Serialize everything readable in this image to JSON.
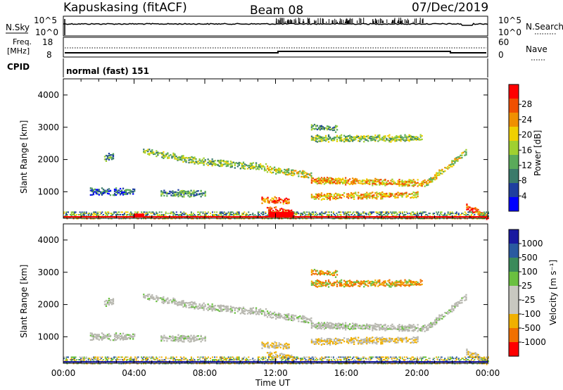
{
  "header": {
    "station": "Kapuskasing (fitACF)",
    "beam": "Beam 08",
    "date": "07/Dec/2019"
  },
  "top_panel": {
    "left_label": "N.Sky",
    "right_label": "N.Search",
    "left_ticks": [
      "10^5",
      "10^0"
    ],
    "right_ticks": [
      "10^5",
      "10^0"
    ]
  },
  "freq_panel": {
    "left_label_1": "Freq.",
    "left_label_2": "[MHz]",
    "right_label": "Nave",
    "left_ticks": [
      "18",
      "8"
    ],
    "right_ticks": [
      "60",
      "0"
    ],
    "freq_level": 10.0
  },
  "cpid_panel": {
    "label": "CPID",
    "text": "normal (fast) 151"
  },
  "colors": {
    "power": [
      "#0000ff",
      "#1f3f9f",
      "#3a7a6a",
      "#5aaa5a",
      "#9fd030",
      "#f0d000",
      "#f09000",
      "#f05000",
      "#ff0000"
    ],
    "velocity": [
      "#1a1aa0",
      "#2a5aa0",
      "#3a8a5a",
      "#6ac040",
      "#c8c8c0",
      "#c8c8c0",
      "#f0b000",
      "#f07000",
      "#ff0000"
    ],
    "ground": "#b8b8b0"
  },
  "chart_data": [
    {
      "type": "heatmap",
      "id": "power",
      "ylabel": "Slant Range [km]",
      "xlabel": "",
      "colorbar_label": "Power [dB]",
      "colorbar_ticks": [
        "4",
        "8",
        "12",
        "16",
        "20",
        "24",
        "28"
      ],
      "y_ticks": [
        "1000",
        "2000",
        "3000",
        "4000"
      ],
      "x_ticks": [],
      "xlim": [
        0,
        24
      ],
      "ylim": [
        180,
        4500
      ]
    },
    {
      "type": "heatmap",
      "id": "velocity",
      "ylabel": "Slant Range [km]",
      "xlabel": "Time UT",
      "colorbar_label": "Velocity [m s⁻¹]",
      "colorbar_ticks": [
        "1000",
        "500",
        "100",
        "25",
        "-25",
        "-100",
        "-500",
        "-1000"
      ],
      "y_ticks": [
        "1000",
        "2000",
        "3000",
        "4000"
      ],
      "x_ticks": [
        "00:00",
        "04:00",
        "08:00",
        "12:00",
        "16:00",
        "20:00",
        "00:00"
      ],
      "xlim": [
        0,
        24
      ],
      "ylim": [
        180,
        4500
      ]
    }
  ]
}
